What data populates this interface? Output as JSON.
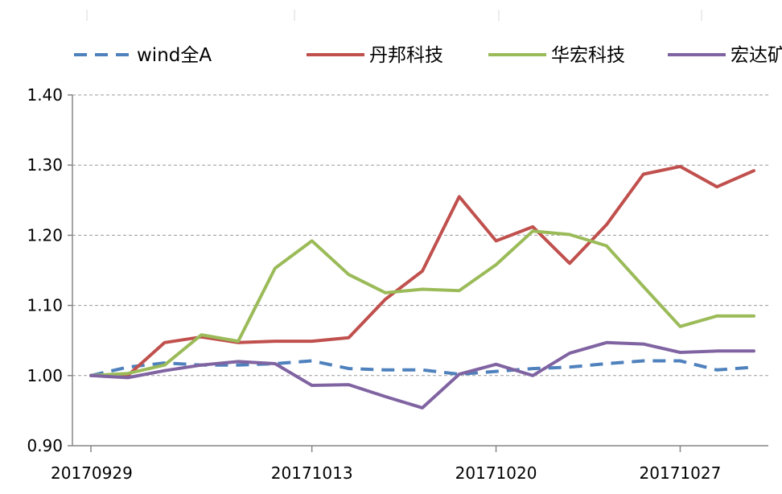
{
  "chart_data": {
    "type": "line",
    "title": "",
    "xlabel": "",
    "ylabel": "",
    "ylim": [
      0.9,
      1.4
    ],
    "yticks": [
      "0.90",
      "1.00",
      "1.10",
      "1.20",
      "1.30",
      "1.40"
    ],
    "ytick_values": [
      0.9,
      1.0,
      1.1,
      1.2,
      1.3,
      1.4
    ],
    "grid": "horizontal dashed",
    "legend_position": "top",
    "x": [
      "20170929",
      "20170930",
      "20171009",
      "20171010",
      "20171011",
      "20171012",
      "20171013",
      "20171016",
      "20171017",
      "20171018",
      "20171019",
      "20171020",
      "20171023",
      "20171024",
      "20171025",
      "20171026",
      "20171027",
      "20171030",
      "20171031"
    ],
    "xtick_labels": [
      "20170929",
      "20171013",
      "20171020",
      "20171027"
    ],
    "series": [
      {
        "name": "wind全A",
        "color": "#4f81bd",
        "dashed": true,
        "values": [
          1.0,
          1.012,
          1.018,
          1.015,
          1.015,
          1.017,
          1.021,
          1.01,
          1.008,
          1.008,
          1.002,
          1.006,
          1.01,
          1.012,
          1.017,
          1.021,
          1.021,
          1.008,
          1.012
        ]
      },
      {
        "name": "丹邦科技",
        "color": "#c0504d",
        "dashed": false,
        "values": [
          1.0,
          1.0,
          1.047,
          1.055,
          1.047,
          1.049,
          1.049,
          1.054,
          1.109,
          1.149,
          1.255,
          1.192,
          1.212,
          1.16,
          1.215,
          1.287,
          1.298,
          1.269,
          1.292
        ]
      },
      {
        "name": "华宏科技",
        "color": "#9bbb59",
        "dashed": false,
        "values": [
          1.0,
          1.003,
          1.015,
          1.058,
          1.049,
          1.153,
          1.192,
          1.144,
          1.118,
          1.123,
          1.121,
          1.158,
          1.206,
          1.201,
          1.185,
          1.127,
          1.07,
          1.085,
          1.085
        ]
      },
      {
        "name": "宏达矿业",
        "color": "#8064a2",
        "dashed": false,
        "values": [
          1.0,
          0.997,
          1.007,
          1.015,
          1.02,
          1.017,
          0.986,
          0.987,
          0.97,
          0.954,
          1.002,
          1.016,
          1.0,
          1.032,
          1.047,
          1.045,
          1.033,
          1.035,
          1.035
        ]
      }
    ]
  }
}
